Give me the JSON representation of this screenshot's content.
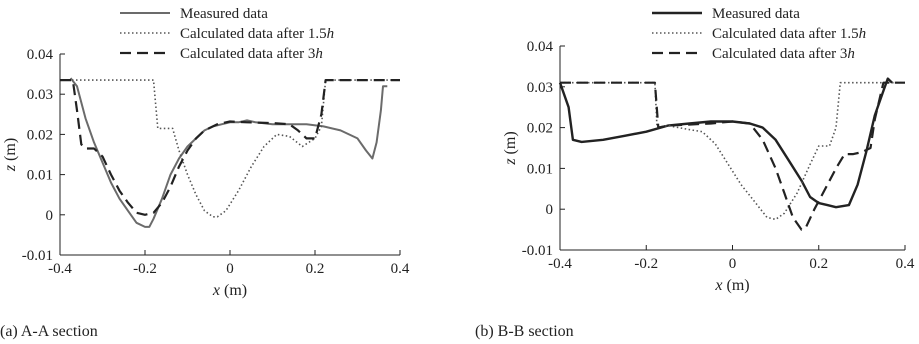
{
  "chart_data": [
    {
      "type": "line",
      "caption": "(a) A-A section",
      "xlabel_var": "x",
      "xlabel_unit": " (m)",
      "ylabel_var": "z",
      "ylabel_unit": " (m)",
      "xlim": [
        -0.4,
        0.4
      ],
      "ylim": [
        -0.01,
        0.04
      ],
      "xticks": [
        "-0.4",
        "-0.2",
        "0",
        "0.2",
        "0.4"
      ],
      "yticks": [
        "-0.01",
        "0",
        "0.01",
        "0.02",
        "0.03",
        "0.04"
      ],
      "legend_position": "top-center",
      "series": [
        {
          "name": "Measured data",
          "style": "solid",
          "color": "#6b6b6b",
          "width": 2,
          "points": [
            [
              -0.375,
              0.034
            ],
            [
              -0.36,
              0.032
            ],
            [
              -0.34,
              0.024
            ],
            [
              -0.32,
              0.018
            ],
            [
              -0.3,
              0.013
            ],
            [
              -0.28,
              0.008
            ],
            [
              -0.26,
              0.004
            ],
            [
              -0.24,
              0.001
            ],
            [
              -0.22,
              -0.002
            ],
            [
              -0.2,
              -0.003
            ],
            [
              -0.19,
              -0.003
            ],
            [
              -0.18,
              -0.001
            ],
            [
              -0.16,
              0.004
            ],
            [
              -0.14,
              0.01
            ],
            [
              -0.12,
              0.014
            ],
            [
              -0.1,
              0.017
            ],
            [
              -0.08,
              0.019
            ],
            [
              -0.06,
              0.021
            ],
            [
              -0.04,
              0.022
            ],
            [
              -0.02,
              0.0225
            ],
            [
              0.0,
              0.023
            ],
            [
              0.02,
              0.023
            ],
            [
              0.04,
              0.0235
            ],
            [
              0.06,
              0.023
            ],
            [
              0.1,
              0.0225
            ],
            [
              0.14,
              0.0225
            ],
            [
              0.18,
              0.0225
            ],
            [
              0.22,
              0.022
            ],
            [
              0.26,
              0.021
            ],
            [
              0.3,
              0.019
            ],
            [
              0.32,
              0.016
            ],
            [
              0.335,
              0.014
            ],
            [
              0.345,
              0.018
            ],
            [
              0.355,
              0.026
            ],
            [
              0.36,
              0.032
            ],
            [
              0.37,
              0.032
            ]
          ]
        },
        {
          "name": "Calculated data after 1.5h",
          "name_plain": "Calculated data after 1.5",
          "name_var": "h",
          "style": "dotted",
          "color": "#555555",
          "width": 1.6,
          "points": [
            [
              -0.4,
              0.0335
            ],
            [
              -0.2,
              0.0335
            ],
            [
              -0.18,
              0.0335
            ],
            [
              -0.17,
              0.0215
            ],
            [
              -0.135,
              0.0215
            ],
            [
              -0.12,
              0.016
            ],
            [
              -0.1,
              0.01
            ],
            [
              -0.08,
              0.005
            ],
            [
              -0.06,
              0.001
            ],
            [
              -0.04,
              -0.0005
            ],
            [
              -0.03,
              -0.0005
            ],
            [
              -0.01,
              0.001
            ],
            [
              0.02,
              0.006
            ],
            [
              0.05,
              0.012
            ],
            [
              0.08,
              0.017
            ],
            [
              0.11,
              0.02
            ],
            [
              0.14,
              0.0195
            ],
            [
              0.17,
              0.017
            ],
            [
              0.2,
              0.019
            ],
            [
              0.215,
              0.022
            ],
            [
              0.225,
              0.0335
            ],
            [
              0.4,
              0.0335
            ]
          ]
        },
        {
          "name": "Calculated data after 3h",
          "name_plain": "Calculated data after 3",
          "name_var": "h",
          "style": "dashed",
          "color": "#222222",
          "width": 2.2,
          "points": [
            [
              -0.4,
              0.0335
            ],
            [
              -0.37,
              0.0335
            ],
            [
              -0.36,
              0.026
            ],
            [
              -0.35,
              0.0175
            ],
            [
              -0.34,
              0.0165
            ],
            [
              -0.32,
              0.0165
            ],
            [
              -0.3,
              0.0145
            ],
            [
              -0.28,
              0.01
            ],
            [
              -0.26,
              0.006
            ],
            [
              -0.24,
              0.003
            ],
            [
              -0.22,
              0.0005
            ],
            [
              -0.2,
              0.0
            ],
            [
              -0.18,
              0.0005
            ],
            [
              -0.16,
              0.003
            ],
            [
              -0.14,
              0.007
            ],
            [
              -0.12,
              0.012
            ],
            [
              -0.1,
              0.016
            ],
            [
              -0.08,
              0.019
            ],
            [
              -0.06,
              0.021
            ],
            [
              -0.03,
              0.0225
            ],
            [
              0.0,
              0.0232
            ],
            [
              0.04,
              0.023
            ],
            [
              0.1,
              0.0228
            ],
            [
              0.14,
              0.0225
            ],
            [
              0.16,
              0.021
            ],
            [
              0.18,
              0.019
            ],
            [
              0.2,
              0.019
            ],
            [
              0.215,
              0.025
            ],
            [
              0.225,
              0.0335
            ],
            [
              0.4,
              0.0335
            ]
          ]
        }
      ]
    },
    {
      "type": "line",
      "caption": "(b) B-B section",
      "xlabel_var": "x",
      "xlabel_unit": " (m)",
      "ylabel_var": "z",
      "ylabel_unit": " (m)",
      "xlim": [
        -0.4,
        0.4
      ],
      "ylim": [
        -0.01,
        0.04
      ],
      "xticks": [
        "-0.4",
        "-0.2",
        "0",
        "0.2",
        "0.4"
      ],
      "yticks": [
        "-0.01",
        "0",
        "0.01",
        "0.02",
        "0.03",
        "0.04"
      ],
      "legend_position": "top-center",
      "series": [
        {
          "name": "Measured data",
          "style": "solid",
          "color": "#222222",
          "width": 2.4,
          "points": [
            [
              -0.4,
              0.031
            ],
            [
              -0.38,
              0.025
            ],
            [
              -0.37,
              0.017
            ],
            [
              -0.35,
              0.0165
            ],
            [
              -0.3,
              0.017
            ],
            [
              -0.25,
              0.018
            ],
            [
              -0.2,
              0.019
            ],
            [
              -0.15,
              0.0205
            ],
            [
              -0.1,
              0.021
            ],
            [
              -0.05,
              0.0215
            ],
            [
              0.0,
              0.0215
            ],
            [
              0.04,
              0.021
            ],
            [
              0.07,
              0.02
            ],
            [
              0.1,
              0.017
            ],
            [
              0.13,
              0.012
            ],
            [
              0.16,
              0.007
            ],
            [
              0.18,
              0.003
            ],
            [
              0.2,
              0.0015
            ],
            [
              0.22,
              0.001
            ],
            [
              0.24,
              0.0005
            ],
            [
              0.27,
              0.001
            ],
            [
              0.29,
              0.006
            ],
            [
              0.31,
              0.014
            ],
            [
              0.33,
              0.023
            ],
            [
              0.35,
              0.029
            ],
            [
              0.36,
              0.032
            ],
            [
              0.37,
              0.031
            ]
          ]
        },
        {
          "name": "Calculated data after 1.5h",
          "name_plain": "Calculated data after 1.5",
          "name_var": "h",
          "style": "dotted",
          "color": "#555555",
          "width": 1.6,
          "points": [
            [
              -0.4,
              0.031
            ],
            [
              -0.18,
              0.031
            ],
            [
              -0.175,
              0.02
            ],
            [
              -0.15,
              0.0205
            ],
            [
              -0.1,
              0.0195
            ],
            [
              -0.07,
              0.019
            ],
            [
              -0.04,
              0.016
            ],
            [
              -0.01,
              0.011
            ],
            [
              0.02,
              0.006
            ],
            [
              0.05,
              0.002
            ],
            [
              0.08,
              -0.002
            ],
            [
              0.1,
              -0.0025
            ],
            [
              0.12,
              -0.001
            ],
            [
              0.15,
              0.004
            ],
            [
              0.18,
              0.011
            ],
            [
              0.2,
              0.0155
            ],
            [
              0.225,
              0.0155
            ],
            [
              0.24,
              0.02
            ],
            [
              0.25,
              0.031
            ],
            [
              0.4,
              0.031
            ]
          ]
        },
        {
          "name": "Calculated data after 3h",
          "name_plain": "Calculated data after 3",
          "name_var": "h",
          "style": "dashed",
          "color": "#222222",
          "width": 2.2,
          "points": [
            [
              -0.4,
              0.031
            ],
            [
              -0.18,
              0.031
            ],
            [
              -0.172,
              0.02
            ],
            [
              -0.15,
              0.0205
            ],
            [
              -0.05,
              0.021
            ],
            [
              0.0,
              0.0215
            ],
            [
              0.04,
              0.021
            ],
            [
              0.07,
              0.017
            ],
            [
              0.1,
              0.01
            ],
            [
              0.12,
              0.004
            ],
            [
              0.14,
              -0.002
            ],
            [
              0.16,
              -0.005
            ],
            [
              0.17,
              -0.0045
            ],
            [
              0.19,
              0.0
            ],
            [
              0.21,
              0.004
            ],
            [
              0.24,
              0.01
            ],
            [
              0.26,
              0.0135
            ],
            [
              0.28,
              0.0135
            ],
            [
              0.3,
              0.014
            ],
            [
              0.32,
              0.015
            ],
            [
              0.33,
              0.022
            ],
            [
              0.35,
              0.031
            ],
            [
              0.4,
              0.031
            ]
          ]
        }
      ]
    }
  ]
}
